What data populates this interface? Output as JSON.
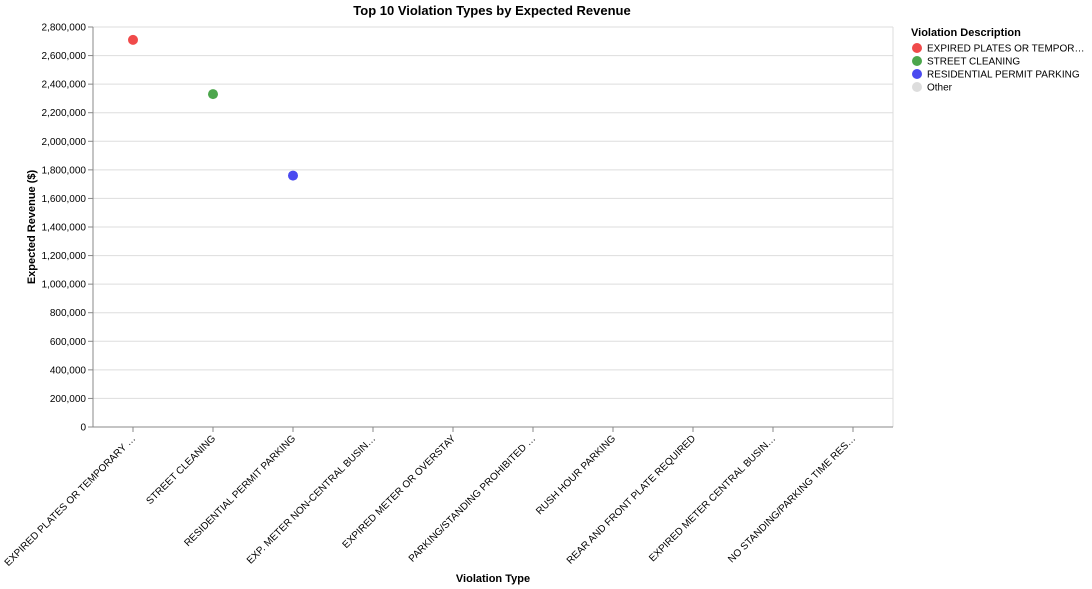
{
  "chart_data": {
    "type": "scatter",
    "title": "Top 10 Violation Types by Expected Revenue",
    "xlabel": "Violation Type",
    "ylabel": "Expected Revenue ($)",
    "ylim": [
      0,
      2800000
    ],
    "y_ticks": [
      0,
      200000,
      400000,
      600000,
      800000,
      1000000,
      1200000,
      1400000,
      1600000,
      1800000,
      2000000,
      2200000,
      2400000,
      2600000,
      2800000
    ],
    "y_tick_labels": [
      "0",
      "200,000",
      "400,000",
      "600,000",
      "800,000",
      "1,000,000",
      "1,200,000",
      "1,400,000",
      "1,600,000",
      "1,800,000",
      "2,000,000",
      "2,200,000",
      "2,400,000",
      "2,600,000",
      "2,800,000"
    ],
    "categories": [
      "EXPIRED PLATES OR TEMPORARY …",
      "STREET CLEANING",
      "RESIDENTIAL PERMIT PARKING",
      "EXP. METER NON-CENTRAL BUSIN…",
      "EXPIRED METER OR OVERSTAY",
      "PARKING/STANDING PROHIBITED …",
      "RUSH HOUR PARKING",
      "REAR AND FRONT PLATE REQUIRED",
      "EXPIRED METER CENTRAL BUSIN…",
      "NO STANDING/PARKING TIME RES…"
    ],
    "points": [
      {
        "category": "EXPIRED PLATES OR TEMPORARY …",
        "value": 2710000,
        "color": "#f04a4a"
      },
      {
        "category": "STREET CLEANING",
        "value": 2330000,
        "color": "#4ca64c"
      },
      {
        "category": "RESIDENTIAL PERMIT PARKING",
        "value": 1760000,
        "color": "#4a4af0"
      }
    ],
    "grid": true,
    "legend_position": "right",
    "legend": {
      "title": "Violation Description",
      "entries": [
        {
          "label": "EXPIRED PLATES OR TEMPOR…",
          "color": "#f04a4a"
        },
        {
          "label": "STREET CLEANING",
          "color": "#4ca64c"
        },
        {
          "label": "RESIDENTIAL PERMIT PARKING",
          "color": "#4a4af0"
        },
        {
          "label": "Other",
          "color": "#dddddd"
        }
      ]
    }
  }
}
